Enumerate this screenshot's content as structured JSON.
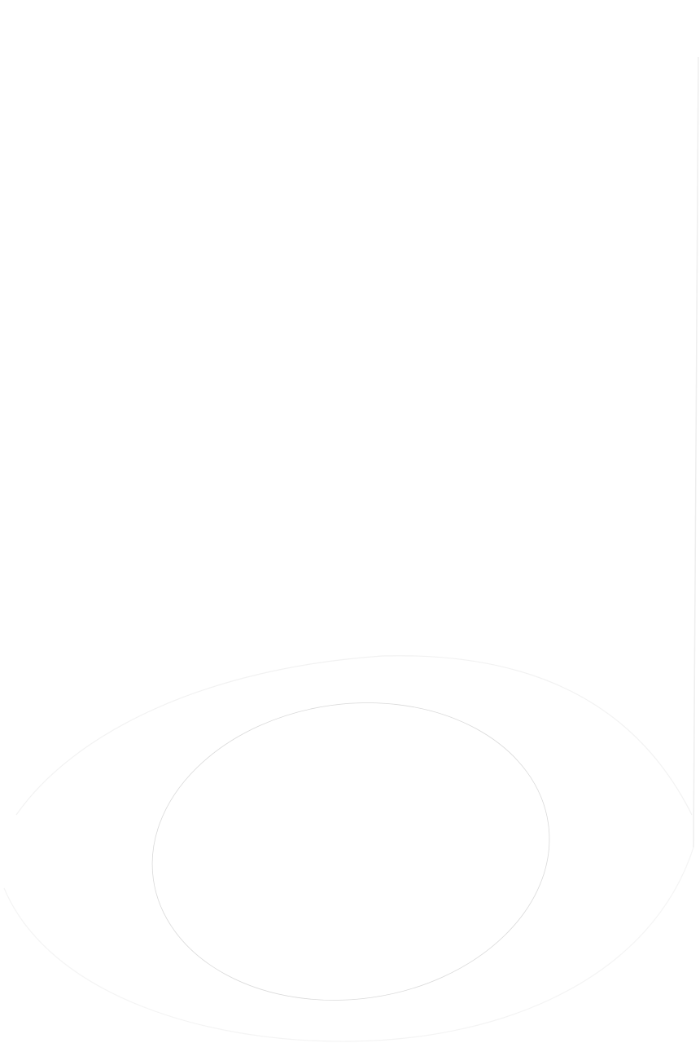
{
  "colors": {
    "background": "#ffffff",
    "outline_faint": "#f2f2f2",
    "outline_inner": "#d9d9d9",
    "edge_line": "#eeeeee"
  }
}
